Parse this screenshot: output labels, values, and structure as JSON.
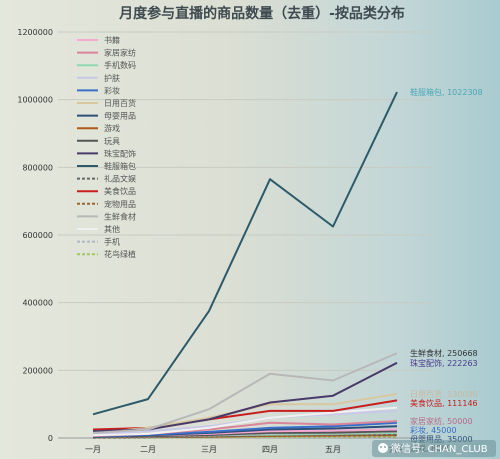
{
  "chart_data": {
    "type": "line",
    "title": "月度参与直播的商品数量（去重）-按品类分布",
    "xlabel": "",
    "ylabel": "",
    "categories": [
      "一月",
      "二月",
      "三月",
      "四月",
      "五月",
      "六月"
    ],
    "ylim": [
      0,
      1200000
    ],
    "yticks": [
      "0",
      "200000",
      "400000",
      "600000",
      "800000",
      "1000000",
      "1200000"
    ],
    "grid": true,
    "legend_position": "top-left",
    "series": [
      {
        "name": "书籍",
        "color": "#f5a8d0",
        "dash": "",
        "values": [
          5000,
          8000,
          12000,
          20000,
          22000,
          25000
        ]
      },
      {
        "name": "家居家纺",
        "color": "#d9859a",
        "dash": "",
        "values": [
          6000,
          12000,
          25000,
          45000,
          40000,
          50000
        ]
      },
      {
        "name": "手机数码",
        "color": "#8fd8b0",
        "dash": "",
        "values": [
          3000,
          5000,
          8000,
          10000,
          12000,
          15000
        ]
      },
      {
        "name": "护肤",
        "color": "#c8c8e8",
        "dash": "",
        "values": [
          10000,
          20000,
          35000,
          60000,
          70000,
          80000
        ]
      },
      {
        "name": "彩妆",
        "color": "#3a6fc8",
        "dash": "",
        "values": [
          5000,
          10000,
          18000,
          30000,
          35000,
          45000
        ]
      },
      {
        "name": "日用百货",
        "color": "#d8c8a0",
        "dash": "",
        "values": [
          15000,
          30000,
          60000,
          100000,
          100000,
          130000
        ]
      },
      {
        "name": "母婴用品",
        "color": "#2e4f7a",
        "dash": "",
        "values": [
          4000,
          8000,
          15000,
          25000,
          28000,
          35000
        ]
      },
      {
        "name": "游戏",
        "color": "#b05a1a",
        "dash": "",
        "values": [
          2000,
          3000,
          4000,
          6000,
          7000,
          8000
        ]
      },
      {
        "name": "玩具",
        "color": "#555555",
        "dash": "",
        "values": [
          3000,
          5000,
          9000,
          15000,
          16000,
          20000
        ]
      },
      {
        "name": "珠宝配饰",
        "color": "#4a3a6a",
        "dash": "",
        "values": [
          20000,
          25000,
          55000,
          105000,
          125000,
          222263
        ]
      },
      {
        "name": "鞋服箱包",
        "color": "#2d5a6a",
        "dash": "",
        "values": [
          70000,
          115000,
          375000,
          765000,
          625000,
          1022308
        ]
      },
      {
        "name": "礼品文娱",
        "color": "#666666",
        "dash": "3,2",
        "values": [
          1000,
          2000,
          4000,
          8000,
          9000,
          10000
        ]
      },
      {
        "name": "美食饮品",
        "color": "#c81e1e",
        "dash": "",
        "values": [
          25000,
          30000,
          55000,
          80000,
          80000,
          111146
        ]
      },
      {
        "name": "宠物用品",
        "color": "#996633",
        "dash": "3,2",
        "values": [
          1000,
          1500,
          2500,
          4000,
          4500,
          5000
        ]
      },
      {
        "name": "生鲜食材",
        "color": "#b8b8b8",
        "dash": "",
        "values": [
          15000,
          25000,
          85000,
          190000,
          170000,
          250668
        ]
      },
      {
        "name": "其他",
        "color": "#f0f0f0",
        "dash": "",
        "values": [
          8000,
          12000,
          30000,
          60000,
          75000,
          90000
        ]
      },
      {
        "name": "手机",
        "color": "#b0b8c8",
        "dash": "3,2",
        "values": [
          2000,
          4000,
          7000,
          12000,
          14000,
          18000
        ]
      },
      {
        "name": "花鸟绿植",
        "color": "#a0c860",
        "dash": "3,2",
        "values": [
          500,
          1000,
          2000,
          3500,
          4000,
          5000
        ]
      }
    ],
    "end_labels": [
      {
        "text": "鞋服箱包, 1022308",
        "color": "#4aa8b8",
        "value": 1022308
      },
      {
        "text": "生鲜食材, 250668",
        "color": "#333333",
        "value": 250668
      },
      {
        "text": "珠宝配饰, 222263",
        "color": "#4a3a8a",
        "value": 222263
      },
      {
        "text": "日用百货, 130000",
        "color": "#c8b8a0",
        "value": 130000
      },
      {
        "text": "美食饮品, 111146",
        "color": "#c81e1e",
        "value": 111146
      },
      {
        "text": "家居家纺, 50000",
        "color": "#b86a8a",
        "value": 50000
      },
      {
        "text": "彩妆, 45000",
        "color": "#3a6fc8",
        "value": 45000
      },
      {
        "text": "母婴用品, 35000",
        "color": "#2e4f7a",
        "value": 35000
      },
      {
        "text": "游戏, 8000",
        "color": "#555555",
        "value": 8000
      }
    ]
  },
  "watermark": {
    "text": "微信号: CHAN_CLUB",
    "icon": "wechat-icon"
  }
}
